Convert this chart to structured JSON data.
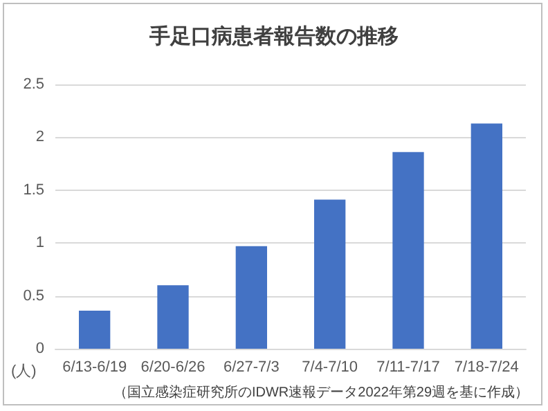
{
  "chart_data": {
    "type": "bar",
    "title": "手足口病患者報告数の推移",
    "ylabel": "(人)",
    "categories": [
      "6/13-6/19",
      "6/20-6/26",
      "6/27-7/3",
      "7/4-7/10",
      "7/11-7/17",
      "7/18-7/24"
    ],
    "values": [
      0.36,
      0.6,
      0.97,
      1.41,
      1.86,
      2.13
    ],
    "color": "#4472c4",
    "ylim": [
      0,
      2.5
    ],
    "yticks": [
      0,
      0.5,
      1,
      1.5,
      2,
      2.5
    ],
    "grid": "y",
    "annotations": [
      "（国立感染症研究所のIDWR速報データ2022年第29週を基に作成）"
    ]
  }
}
